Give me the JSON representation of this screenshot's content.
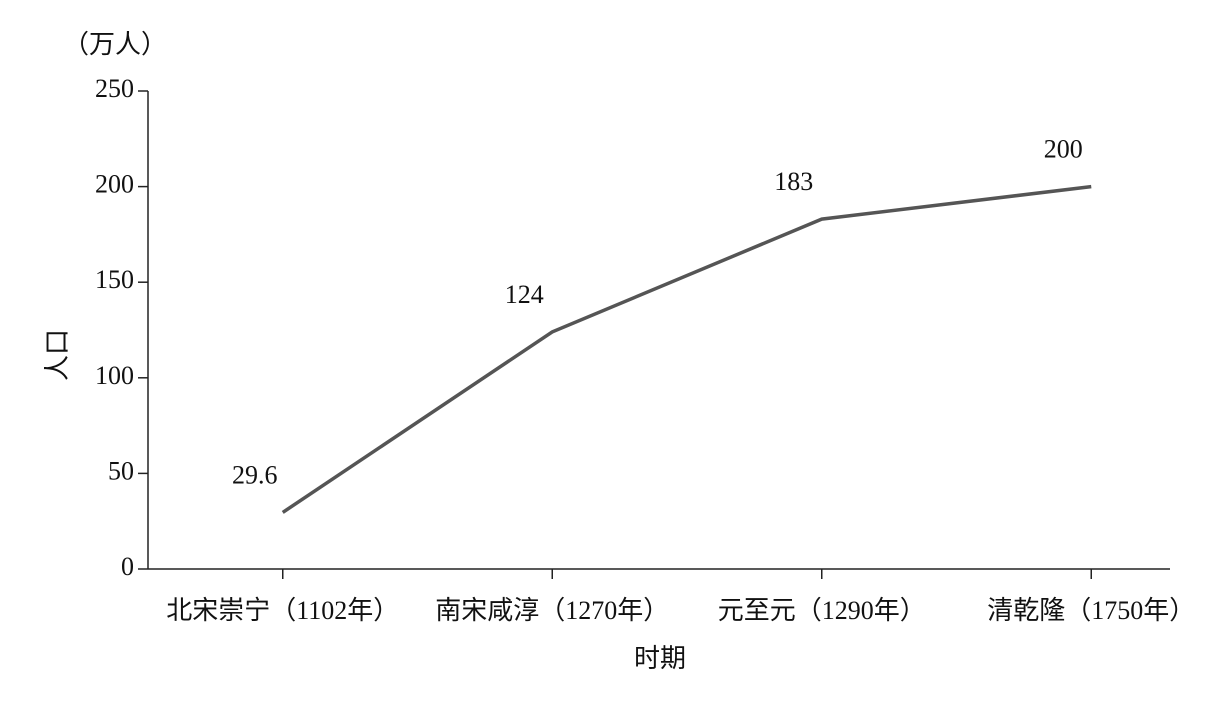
{
  "chart_data": {
    "type": "line",
    "unit_label": "（万人）",
    "y_axis_label": "人口",
    "x_axis_label": "时期",
    "categories": [
      "北宋崇宁（1102年）",
      "南宋咸淳（1270年）",
      "元至元（1290年）",
      "清乾隆（1750年）"
    ],
    "series": [
      {
        "name": "人口",
        "color": "#555555",
        "values": [
          29.6,
          124,
          183,
          200
        ]
      }
    ],
    "ylim": [
      0,
      250
    ],
    "yticks": [
      0,
      50,
      100,
      150,
      200,
      250
    ],
    "grid": false
  }
}
